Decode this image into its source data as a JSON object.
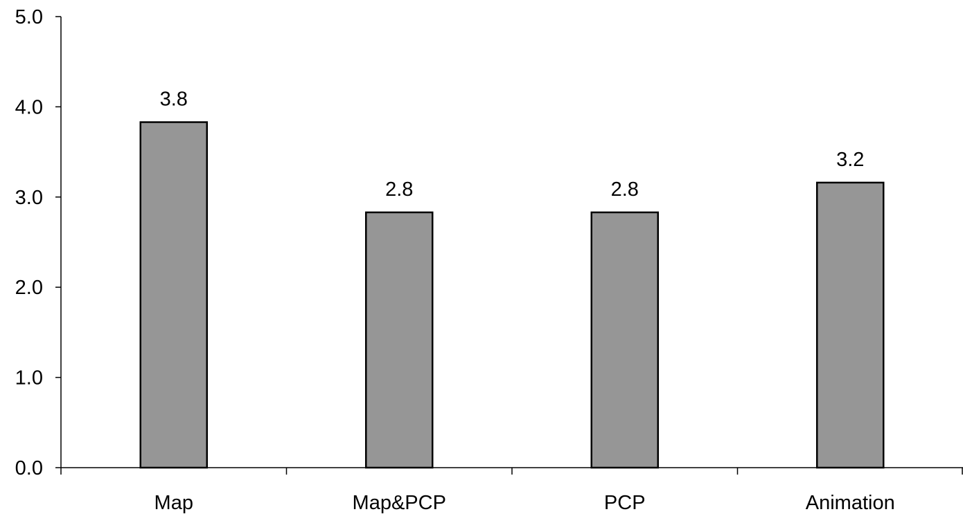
{
  "chart_data": {
    "type": "bar",
    "categories": [
      "Map",
      "Map&PCP",
      "PCP",
      "Animation"
    ],
    "values": [
      3.83,
      2.83,
      2.83,
      3.16
    ],
    "data_labels": [
      "3.8",
      "2.8",
      "2.8",
      "3.2"
    ],
    "y_ticks": [
      "0.0",
      "1.0",
      "2.0",
      "3.0",
      "4.0",
      "5.0"
    ],
    "ylim": [
      0,
      5
    ],
    "title": "",
    "xlabel": "",
    "ylabel": "",
    "grid": false,
    "legend": "none",
    "bar_color": "#969696",
    "bar_border_color": "#000000"
  }
}
